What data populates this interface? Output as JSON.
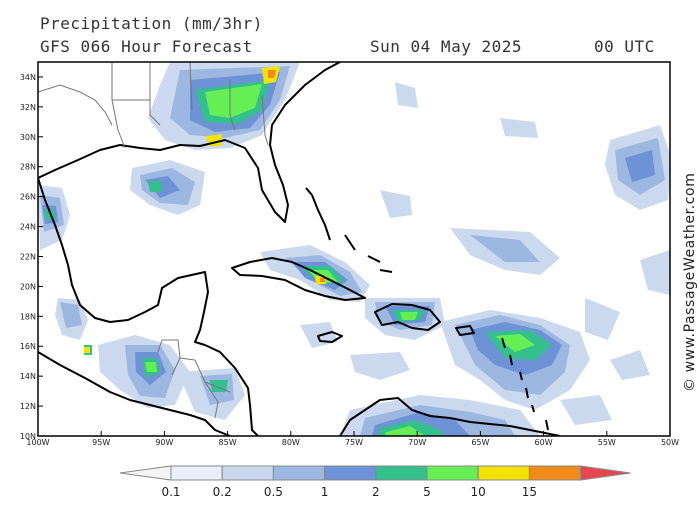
{
  "header": {
    "title": "Precipitation (mm/3hr)",
    "subtitle": "GFS 066 Hour Forecast",
    "date": "Sun 04 May 2025",
    "time": "00 UTC"
  },
  "watermark": "© www.PassageWeather.com",
  "map": {
    "lon_range": [
      -100,
      -50
    ],
    "lat_range": [
      10,
      35
    ],
    "lon_ticks": [
      {
        "lon": -100,
        "label": "100W"
      },
      {
        "lon": -95,
        "label": "95W"
      },
      {
        "lon": -90,
        "label": "90W"
      },
      {
        "lon": -85,
        "label": "85W"
      },
      {
        "lon": -80,
        "label": "80W"
      },
      {
        "lon": -75,
        "label": "75W"
      },
      {
        "lon": -70,
        "label": "70W"
      },
      {
        "lon": -65,
        "label": "65W"
      },
      {
        "lon": -60,
        "label": "60W"
      },
      {
        "lon": -55,
        "label": "55W"
      },
      {
        "lon": -50,
        "label": "50W"
      }
    ],
    "lat_ticks": [
      {
        "lat": 10,
        "label": "10N"
      },
      {
        "lat": 12,
        "label": "12N"
      },
      {
        "lat": 14,
        "label": "14N"
      },
      {
        "lat": 16,
        "label": "16N"
      },
      {
        "lat": 18,
        "label": "18N"
      },
      {
        "lat": 20,
        "label": "20N"
      },
      {
        "lat": 22,
        "label": "22N"
      },
      {
        "lat": 24,
        "label": "24N"
      },
      {
        "lat": 26,
        "label": "26N"
      },
      {
        "lat": 28,
        "label": "28N"
      },
      {
        "lat": 30,
        "label": "30N"
      },
      {
        "lat": 32,
        "label": "32N"
      },
      {
        "lat": 34,
        "label": "34N"
      }
    ]
  },
  "colorbar": {
    "levels": [
      "0.1",
      "0.2",
      "0.5",
      "1",
      "2",
      "5",
      "10",
      "15"
    ],
    "colors": [
      "#e9eef8",
      "#c9d7ef",
      "#9db8e0",
      "#6d92d6",
      "#34c08c",
      "#66ee55",
      "#f2e400",
      "#f08a18",
      "#e8464f",
      "#f4f4f4"
    ]
  }
}
